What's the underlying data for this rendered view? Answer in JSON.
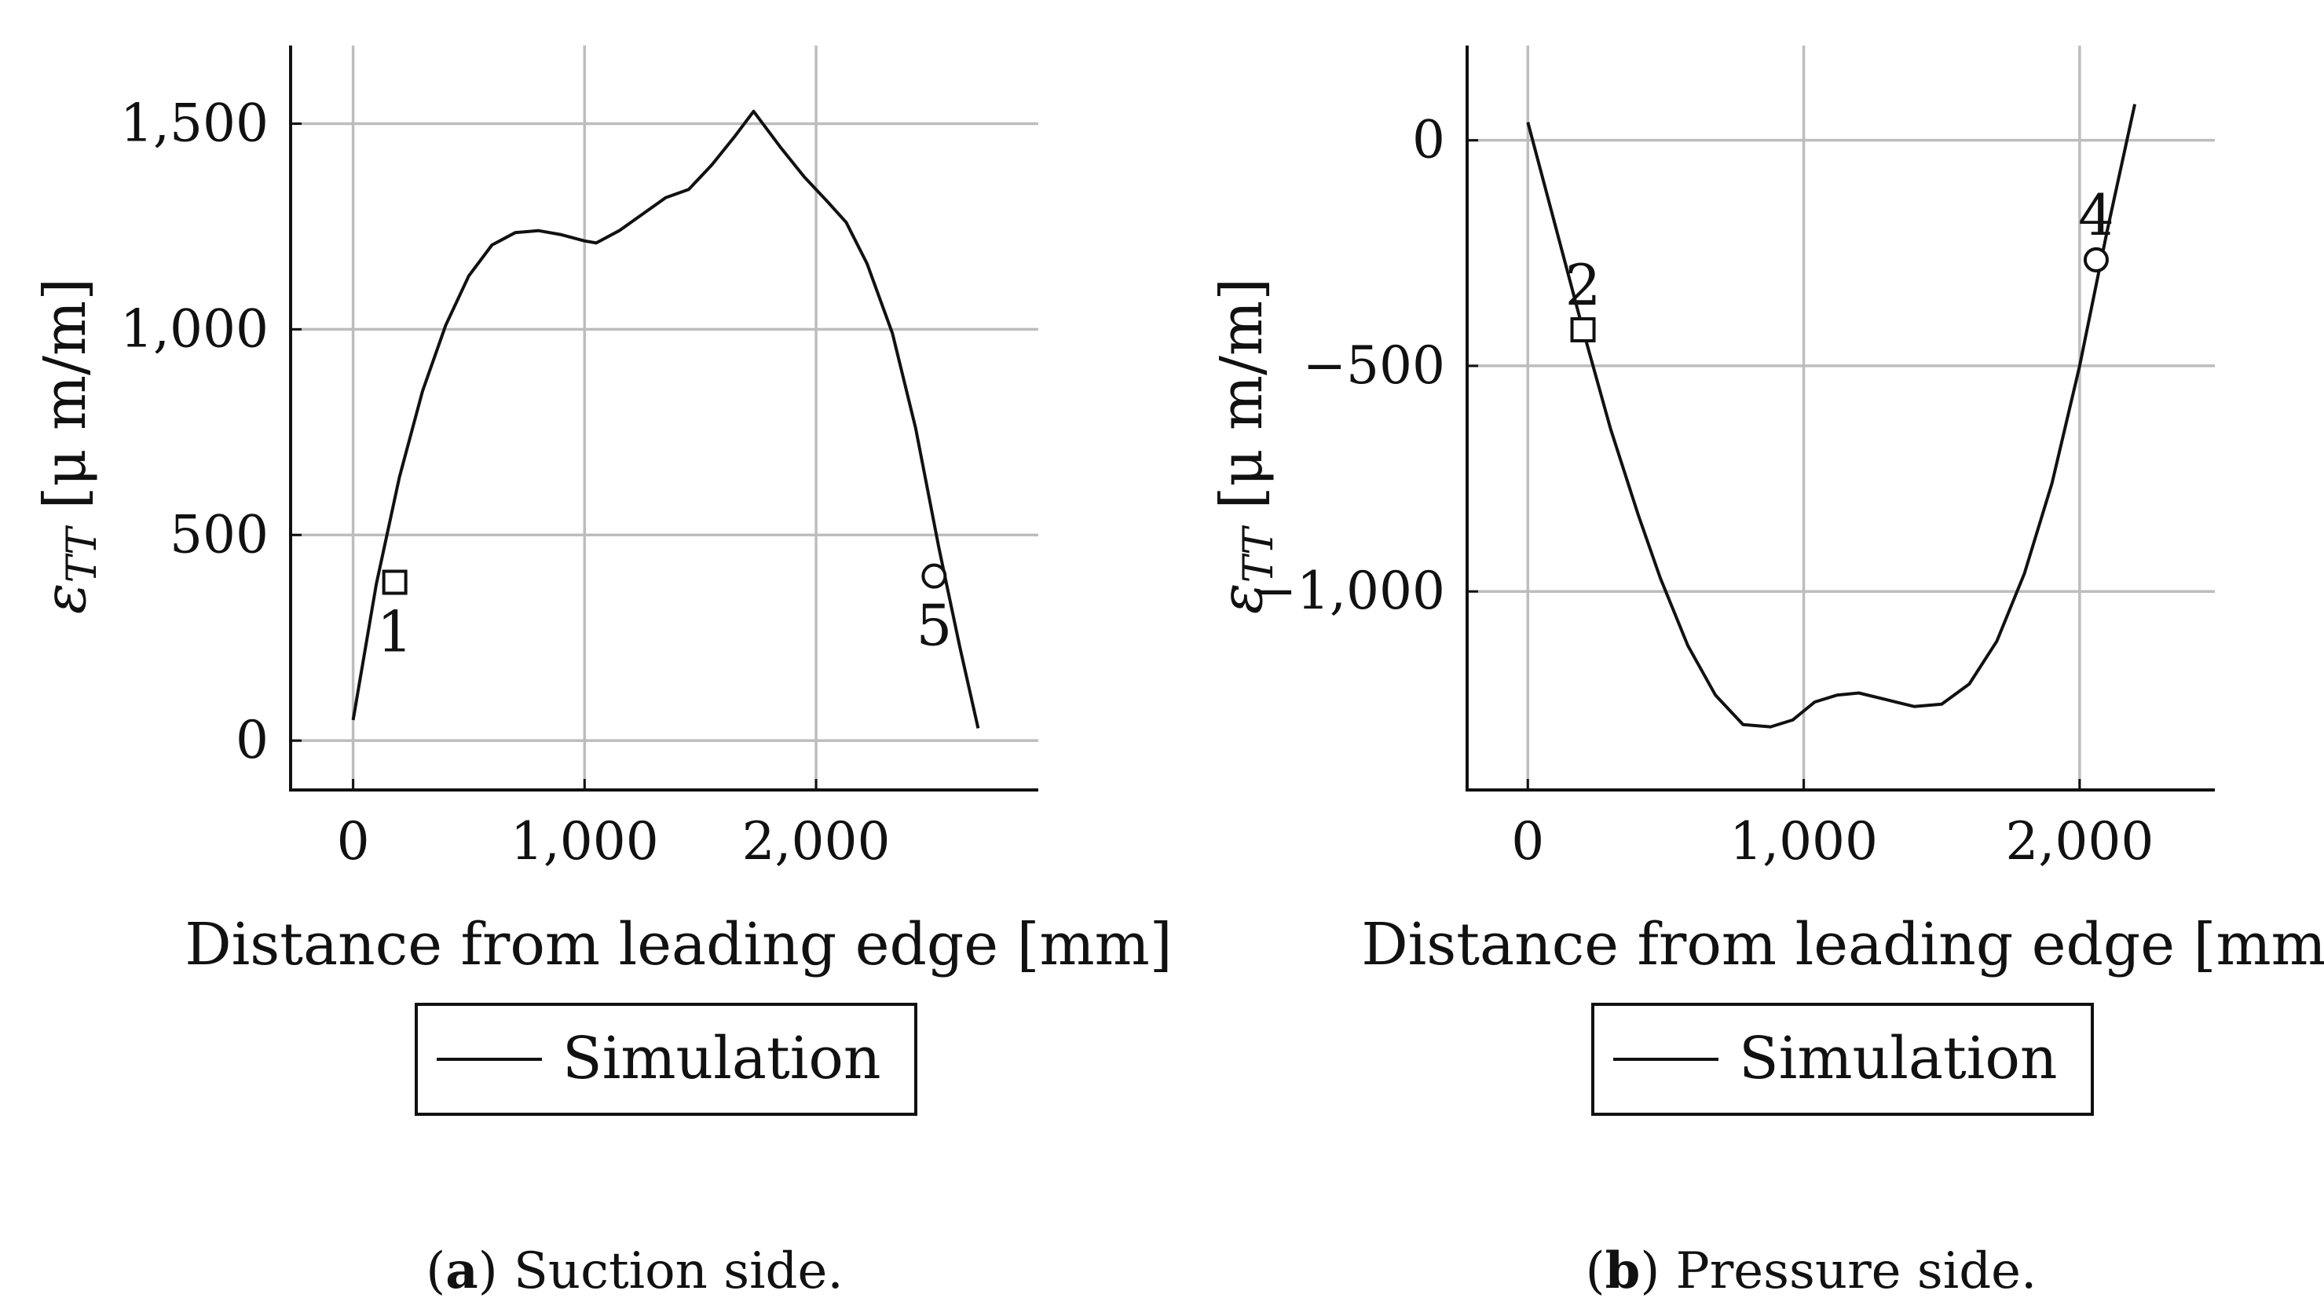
{
  "chart_data": [
    {
      "type": "line",
      "panel_letter": "a",
      "caption": "Suction side.",
      "xlabel": "Distance from leading edge [mm]",
      "ylabel_prefix": "ε",
      "ylabel_subscript": "TT",
      "ylabel_unit": "[μ m/m]",
      "xlim": [
        -270,
        2960
      ],
      "ylim": [
        -120,
        1690
      ],
      "xticks": [
        0,
        1000,
        2000
      ],
      "xtick_labels": [
        "0",
        "1,000",
        "2,000"
      ],
      "yticks": [
        0,
        500,
        1000,
        1500
      ],
      "ytick_labels": [
        "0",
        "500",
        "1,000",
        "1,500"
      ],
      "grid": true,
      "legend": [
        "Simulation"
      ],
      "legend_position": "below",
      "series": [
        {
          "name": "Simulation",
          "x": [
            0,
            100,
            200,
            300,
            400,
            500,
            600,
            700,
            800,
            900,
            1000,
            1050,
            1150,
            1250,
            1350,
            1450,
            1550,
            1650,
            1730,
            1850,
            1950,
            2050,
            2130,
            2220,
            2330,
            2430,
            2530,
            2620,
            2700
          ],
          "y": [
            50,
            380,
            640,
            850,
            1010,
            1130,
            1205,
            1235,
            1240,
            1230,
            1215,
            1210,
            1240,
            1280,
            1320,
            1340,
            1400,
            1470,
            1530,
            1440,
            1370,
            1310,
            1260,
            1160,
            990,
            760,
            470,
            230,
            30
          ]
        }
      ],
      "markers": [
        {
          "shape": "square",
          "x": 180,
          "y": 385,
          "label": "1"
        },
        {
          "shape": "circle",
          "x": 2510,
          "y": 400,
          "label": "5"
        }
      ]
    },
    {
      "type": "line",
      "panel_letter": "b",
      "caption": "Pressure side.",
      "xlabel": "Distance from leading edge [mm]",
      "ylabel_prefix": "ε",
      "ylabel_subscript": "TT",
      "ylabel_unit": "[μ m/m]",
      "xlim": [
        -220,
        2490
      ],
      "ylim": [
        -1440,
        210
      ],
      "xticks": [
        0,
        1000,
        2000
      ],
      "xtick_labels": [
        "0",
        "1,000",
        "2,000"
      ],
      "yticks": [
        0,
        -500,
        -1000
      ],
      "ytick_labels": [
        "0",
        "−500",
        "−1,000"
      ],
      "grid": true,
      "legend": [
        "Simulation"
      ],
      "legend_position": "below",
      "series": [
        {
          "name": "Simulation",
          "x": [
            0,
            100,
            200,
            300,
            400,
            480,
            580,
            680,
            780,
            880,
            960,
            1040,
            1120,
            1200,
            1300,
            1400,
            1500,
            1600,
            1700,
            1800,
            1900,
            2000,
            2100,
            2200
          ],
          "y": [
            40,
            -190,
            -420,
            -640,
            -830,
            -970,
            -1120,
            -1230,
            -1295,
            -1300,
            -1285,
            -1245,
            -1230,
            -1225,
            -1240,
            -1255,
            -1250,
            -1205,
            -1110,
            -960,
            -760,
            -500,
            -200,
            80
          ]
        }
      ],
      "markers": [
        {
          "shape": "square",
          "x": 200,
          "y": -420,
          "label": "2"
        },
        {
          "shape": "circle",
          "x": 2060,
          "y": -265,
          "label": "4"
        }
      ]
    }
  ]
}
